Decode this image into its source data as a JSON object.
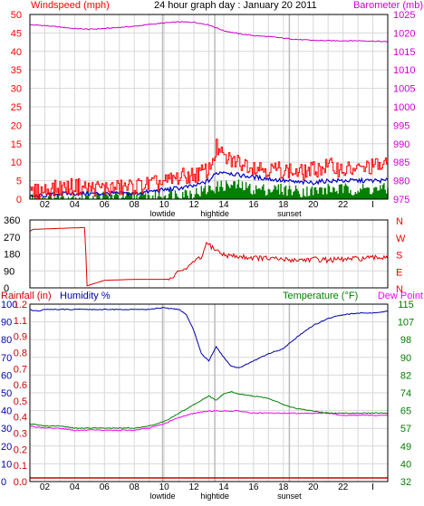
{
  "colors": {
    "wind": "#ff0000",
    "baro": "#cc00cc",
    "rain": "#cc0000",
    "humidity": "#0000aa",
    "temperature": "#008000",
    "dewpoint": "#ff00ff",
    "gust": "#ff0000",
    "avgwind": "#0000cc",
    "minwind": "#008000",
    "grid": "#d8d8d8",
    "axis": "#000000"
  },
  "chart_data": [
    {
      "type": "line",
      "title": "24 hour graph day : January 20 2011",
      "left_label": "Windspeed (mph)",
      "right_label": "Barometer (mb)",
      "x_ticks": [
        "02",
        "04",
        "06",
        "08",
        "10",
        "12",
        "14",
        "16",
        "18",
        "20",
        "22",
        "I"
      ],
      "events": [
        {
          "label": "lowtide",
          "hour": 8.9
        },
        {
          "label": "hightide",
          "hour": 12.4
        },
        {
          "label": "sunset",
          "hour": 17.4
        }
      ],
      "ylim_left": [
        0,
        50
      ],
      "left_ticks": [
        "0",
        "5",
        "10",
        "15",
        "20",
        "25",
        "30",
        "35",
        "40",
        "45",
        "50"
      ],
      "ylim_right": [
        975,
        1025
      ],
      "right_ticks": [
        "975",
        "980",
        "985",
        "990",
        "995",
        "1000",
        "1005",
        "1010",
        "1015",
        "1020",
        "1025"
      ],
      "series": [
        {
          "key": "baro",
          "axis": "right",
          "x": [
            0,
            1,
            2,
            3,
            4,
            5,
            6,
            7,
            8,
            9,
            10,
            11,
            12,
            13,
            14,
            15,
            16,
            17,
            18,
            19,
            20,
            21,
            22,
            23,
            24
          ],
          "values": [
            1022.2,
            1022.0,
            1021.6,
            1021.2,
            1021.0,
            1021.2,
            1021.5,
            1021.8,
            1022.3,
            1022.7,
            1023.0,
            1022.9,
            1022.2,
            1020.6,
            1019.8,
            1019.3,
            1019.0,
            1018.6,
            1018.2,
            1018.0,
            1017.9,
            1017.9,
            1017.9,
            1017.8,
            1017.6
          ]
        },
        {
          "key": "gust",
          "axis": "left",
          "style": "jagged",
          "x": [
            0,
            1,
            2,
            3,
            4,
            5,
            6,
            7,
            8,
            9,
            10,
            11,
            12,
            12.5,
            13,
            14,
            15,
            16,
            17,
            18,
            19,
            20,
            21,
            22,
            23,
            24
          ],
          "values": [
            1.5,
            2.5,
            3,
            3.5,
            3,
            3,
            3,
            3.5,
            4,
            4.5,
            6,
            6.5,
            8,
            14,
            11,
            10,
            9,
            8,
            8,
            7,
            8,
            9,
            8,
            8,
            9,
            9
          ]
        },
        {
          "key": "avgwind",
          "axis": "left",
          "style": "jagged",
          "x": [
            0,
            1,
            2,
            3,
            4,
            5,
            6,
            7,
            8,
            9,
            10,
            11,
            12,
            12.5,
            13,
            14,
            15,
            16,
            17,
            18,
            19,
            20,
            21,
            22,
            23,
            24
          ],
          "values": [
            0.5,
            1,
            1.5,
            1.5,
            1.5,
            1.5,
            1.5,
            1.5,
            2,
            2.5,
            3,
            3.5,
            5,
            7,
            7.5,
            6.5,
            6,
            5.5,
            5,
            4.5,
            4.5,
            5,
            5,
            5,
            5,
            5
          ]
        },
        {
          "key": "minwind",
          "axis": "left",
          "style": "bars",
          "x": [
            0,
            1,
            2,
            3,
            4,
            5,
            6,
            7,
            8,
            9,
            10,
            11,
            12,
            13,
            14,
            15,
            16,
            17,
            18,
            19,
            20,
            21,
            22,
            23,
            24
          ],
          "values": [
            0.5,
            0.5,
            1,
            1,
            1,
            1,
            1,
            1,
            1,
            1.5,
            2,
            2,
            3,
            4,
            4,
            3,
            3,
            3,
            2.5,
            2.5,
            3,
            3,
            3,
            3,
            3
          ]
        }
      ]
    },
    {
      "type": "line",
      "y_ticks": [
        "360",
        "270",
        "180",
        "90",
        "0"
      ],
      "ylim": [
        0,
        360
      ],
      "compass": [
        "N",
        "W",
        "S",
        "E",
        "N"
      ],
      "series": [
        {
          "key": "winddir",
          "x": [
            0,
            0.2,
            3.7,
            3.72,
            3.8,
            5,
            7,
            9,
            9.5,
            10,
            10.5,
            11,
            11.3,
            11.5,
            11.8,
            12,
            12.5,
            13,
            14,
            15,
            16,
            17,
            18,
            19,
            20,
            21,
            22,
            23,
            24
          ],
          "values": [
            300,
            310,
            320,
            300,
            10,
            40,
            45,
            45,
            50,
            90,
            100,
            140,
            160,
            150,
            235,
            230,
            200,
            175,
            165,
            160,
            155,
            150,
            148,
            152,
            148,
            150,
            155,
            158,
            165
          ]
        }
      ]
    },
    {
      "type": "line",
      "left_label": "Rainfall (in)",
      "mid_label": "Humidity %",
      "right_label_temp": "Temperature (°F)",
      "right_label_dew": "Dew Point",
      "x_ticks": [
        "02",
        "04",
        "06",
        "08",
        "10",
        "12",
        "14",
        "16",
        "18",
        "20",
        "22",
        "I"
      ],
      "events": [
        {
          "label": "lowtide",
          "hour": 8.9
        },
        {
          "label": "hightide",
          "hour": 12.4
        },
        {
          "label": "sunset",
          "hour": 17.4
        }
      ],
      "humidity_ticks": [
        "100",
        "90",
        "80",
        "70",
        "60",
        "50",
        "40",
        "30",
        "20",
        "10",
        "0"
      ],
      "rain_ticks": [
        "1.2",
        "1.1",
        "0.9",
        "0.8",
        "0.7",
        "0.6",
        "0.5",
        "0.4",
        "0.3",
        "0.2",
        "0.1",
        "0.0"
      ],
      "temp_ticks": [
        "115",
        "107",
        "98",
        "90",
        "82",
        "74",
        "65",
        "57",
        "49",
        "40",
        "32"
      ],
      "ylim_humidity": [
        0,
        100
      ],
      "ylim_temp": [
        32,
        115
      ],
      "series": [
        {
          "key": "humidity",
          "axis": "humidity",
          "x": [
            0,
            0.5,
            1,
            2,
            3,
            4,
            5,
            6,
            7,
            8,
            9,
            10,
            10.5,
            11,
            11.5,
            12,
            12.5,
            13,
            13.5,
            14,
            15,
            16,
            17,
            18,
            19,
            20,
            21,
            22,
            23,
            24
          ],
          "values": [
            97,
            96,
            97,
            97,
            97,
            97,
            97,
            97,
            97,
            97,
            98,
            97,
            94,
            85,
            72,
            68,
            76,
            70,
            65,
            64,
            68,
            72,
            75,
            82,
            88,
            92,
            94,
            95,
            95,
            96
          ]
        },
        {
          "key": "temperature",
          "axis": "temp",
          "x": [
            0,
            1,
            2,
            3,
            4,
            5,
            6,
            7,
            8,
            9,
            10,
            11,
            11.5,
            12,
            12.5,
            13,
            13.5,
            14,
            15,
            16,
            17,
            18,
            19,
            20,
            21,
            22,
            23,
            24
          ],
          "values": [
            59,
            58,
            58,
            57,
            57,
            57,
            57,
            57,
            58,
            60,
            64,
            68,
            70,
            72,
            70,
            73,
            74,
            73,
            72,
            71,
            68,
            66,
            65,
            64,
            64,
            64,
            64,
            64
          ]
        },
        {
          "key": "dewpoint",
          "axis": "temp",
          "x": [
            0,
            1,
            2,
            3,
            4,
            5,
            6,
            7,
            8,
            9,
            10,
            11,
            12,
            13,
            14,
            15,
            16,
            17,
            18,
            19,
            20,
            21,
            22,
            23,
            24
          ],
          "values": [
            58,
            57,
            57,
            56,
            56,
            56,
            56,
            56,
            57,
            59,
            62,
            64,
            65,
            65,
            65,
            64,
            64,
            64,
            64,
            64,
            64,
            63,
            63,
            63,
            63
          ]
        },
        {
          "key": "rain",
          "axis": "rain",
          "x": [
            0,
            24
          ],
          "values": [
            0.0,
            0.0
          ]
        }
      ]
    }
  ]
}
